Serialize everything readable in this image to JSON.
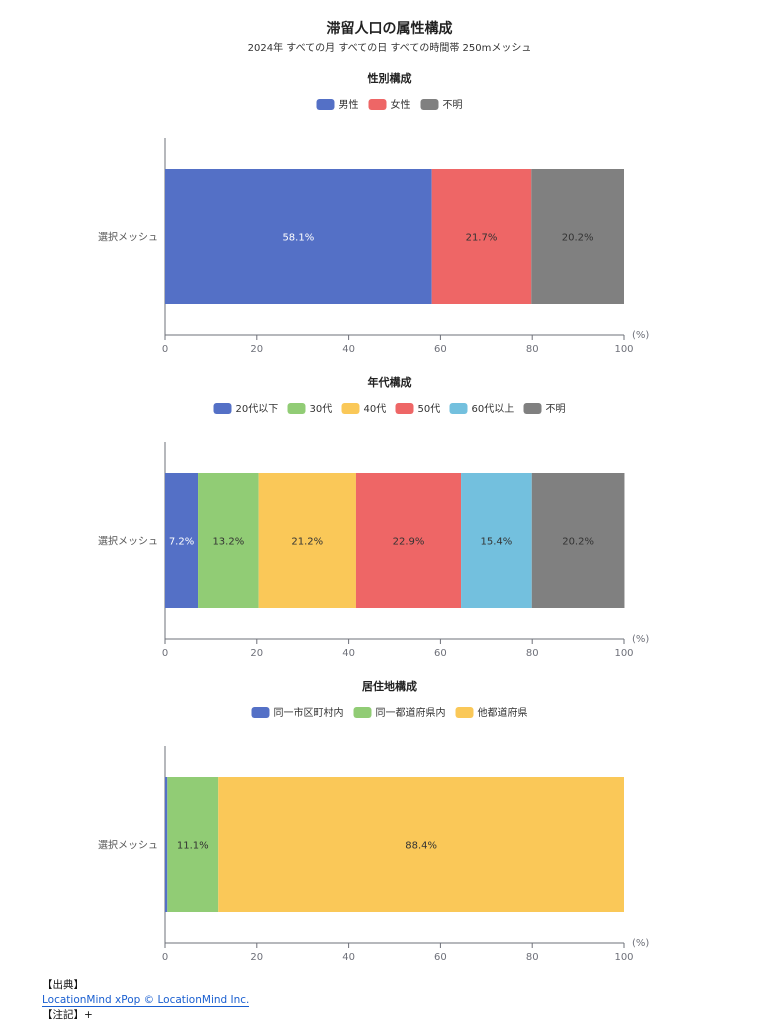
{
  "title": "滞留人口の属性構成",
  "subtitle": "2024年 すべての月 すべての日 すべての時間帯 250mメッシュ",
  "chart_data": [
    {
      "type": "bar",
      "orientation": "horizontal",
      "stacked": true,
      "title": "性別構成",
      "categories": [
        "選択メッシュ"
      ],
      "xlim": [
        0,
        100
      ],
      "xticks": [
        "0",
        "20",
        "40",
        "60",
        "80",
        "100"
      ],
      "xunit": "(%)",
      "legend_position": "top",
      "series": [
        {
          "name": "男性",
          "values": [
            58.1
          ],
          "label": "58.1%",
          "color": "#5470c6"
        },
        {
          "name": "女性",
          "values": [
            21.7
          ],
          "label": "21.7%",
          "color": "#ee6666"
        },
        {
          "name": "不明",
          "values": [
            20.2
          ],
          "label": "20.2%",
          "color": "#808080"
        }
      ]
    },
    {
      "type": "bar",
      "orientation": "horizontal",
      "stacked": true,
      "title": "年代構成",
      "categories": [
        "選択メッシュ"
      ],
      "xlim": [
        0,
        100
      ],
      "xticks": [
        "0",
        "20",
        "40",
        "60",
        "80",
        "100"
      ],
      "xunit": "(%)",
      "legend_position": "top",
      "series": [
        {
          "name": "20代以下",
          "values": [
            7.2
          ],
          "label": "7.2%",
          "color": "#5470c6"
        },
        {
          "name": "30代",
          "values": [
            13.2
          ],
          "label": "13.2%",
          "color": "#91cc75"
        },
        {
          "name": "40代",
          "values": [
            21.2
          ],
          "label": "21.2%",
          "color": "#fac858"
        },
        {
          "name": "50代",
          "values": [
            22.9
          ],
          "label": "22.9%",
          "color": "#ee6666"
        },
        {
          "name": "60代以上",
          "values": [
            15.4
          ],
          "label": "15.4%",
          "color": "#73c0de"
        },
        {
          "name": "不明",
          "values": [
            20.2
          ],
          "label": "20.2%",
          "color": "#808080"
        }
      ]
    },
    {
      "type": "bar",
      "orientation": "horizontal",
      "stacked": true,
      "title": "居住地構成",
      "categories": [
        "選択メッシュ"
      ],
      "xlim": [
        0,
        100
      ],
      "xticks": [
        "0",
        "20",
        "40",
        "60",
        "80",
        "100"
      ],
      "xunit": "(%)",
      "legend_position": "top",
      "series": [
        {
          "name": "同一市区町村内",
          "values": [
            0.5
          ],
          "label": "",
          "color": "#5470c6"
        },
        {
          "name": "同一都道府県内",
          "values": [
            11.1
          ],
          "label": "11.1%",
          "color": "#91cc75"
        },
        {
          "name": "他都道府県",
          "values": [
            88.4
          ],
          "label": "88.4%",
          "color": "#fac858"
        }
      ]
    }
  ],
  "footer": {
    "source_heading": "【出典】",
    "source_link": "LocationMind xPop © LocationMind Inc.",
    "notes_heading": "【注記】+"
  }
}
